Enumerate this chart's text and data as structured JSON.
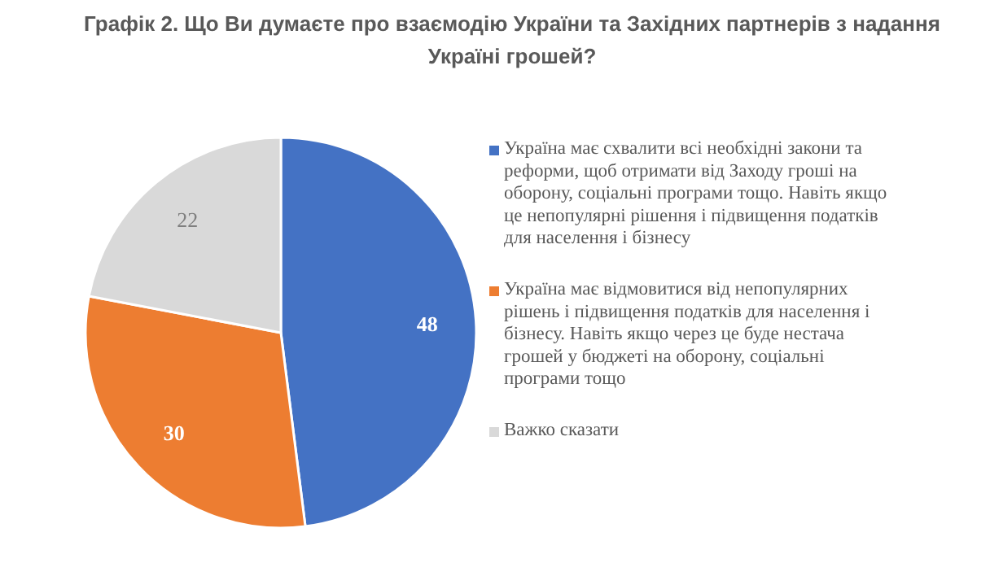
{
  "chart_data": {
    "type": "pie",
    "title": "Графік 2. Що Ви думаєте про взаємодію України та Західних партнерів з надання Україні грошей?",
    "categories": [
      "Україна має схвалити всі необхідні закони та реформи, щоб отримати від Заходу гроші на оборону, соціальні програми тощо. Навіть якщо це непопулярні рішення і підвищення податків для населення і бізнесу",
      "Україна має відмовитися від непопулярних рішень і підвищення податків для населення і бізнесу. Навіть якщо через це буде нестача грошей у бюджеті на оборону, соціальні програми тощо",
      "Важко сказати"
    ],
    "values": [
      48,
      30,
      22
    ],
    "colors": [
      "#4472c4",
      "#ed7d31",
      "#d9d9d9"
    ],
    "data_labels": true,
    "legend": "right"
  }
}
